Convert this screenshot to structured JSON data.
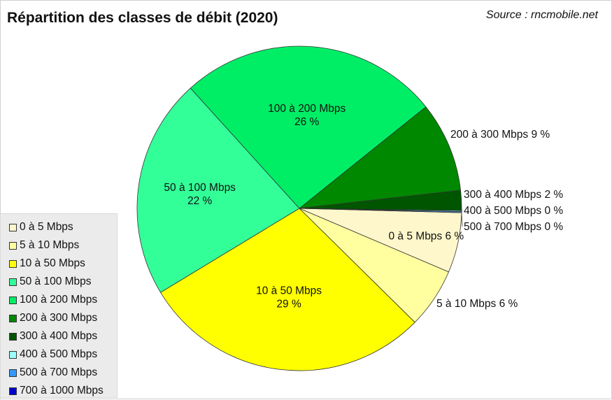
{
  "title": "Répartition des classes de débit (2020)",
  "source": "Source : rncmobile.net",
  "chart_data": {
    "type": "pie",
    "title": "Répartition des classes de débit (2020)",
    "legend_position": "bottom-left",
    "slices": [
      {
        "label": "0 à 5 Mbps",
        "value": 6,
        "color": "#fff7cc",
        "display": "0 à 5 Mbps 6 %",
        "label_pos": "inside"
      },
      {
        "label": "5 à 10 Mbps",
        "value": 6,
        "color": "#ffffa0",
        "display": "5 à 10 Mbps 6 %",
        "label_pos": "outside"
      },
      {
        "label": "10 à 50 Mbps",
        "value": 29,
        "color": "#ffff00",
        "display": "10 à 50 Mbps\n29 %",
        "label_pos": "inside"
      },
      {
        "label": "50 à 100 Mbps",
        "value": 22,
        "color": "#33ff99",
        "display": "50 à 100 Mbps\n22 %",
        "label_pos": "inside"
      },
      {
        "label": "100 à 200 Mbps",
        "value": 26,
        "color": "#00ee66",
        "display": "100 à 200 Mbps\n26 %",
        "label_pos": "inside"
      },
      {
        "label": "200 à 300 Mbps",
        "value": 9,
        "color": "#008800",
        "display": "200 à 300 Mbps 9 %",
        "label_pos": "outside"
      },
      {
        "label": "300 à 400 Mbps",
        "value": 2,
        "color": "#005500",
        "display": "300 à 400 Mbps 2 %",
        "label_pos": "outside"
      },
      {
        "label": "400 à 500 Mbps",
        "value": 0.1,
        "color": "#99ffff",
        "display": "400 à 500 Mbps 0 %",
        "label_pos": "outside"
      },
      {
        "label": "500 à 700 Mbps",
        "value": 0.1,
        "color": "#3399ff",
        "display": "500 à 700 Mbps 0 %",
        "label_pos": "outside"
      }
    ],
    "legend": [
      {
        "label": "0 à 5 Mbps",
        "color": "#fff7cc"
      },
      {
        "label": "5 à 10 Mbps",
        "color": "#ffffa0"
      },
      {
        "label": "10 à 50 Mbps",
        "color": "#ffff00"
      },
      {
        "label": "50 à 100 Mbps",
        "color": "#33ff99"
      },
      {
        "label": "100 à 200 Mbps",
        "color": "#00ee66"
      },
      {
        "label": "200 à 300 Mbps",
        "color": "#008800"
      },
      {
        "label": "300 à 400 Mbps",
        "color": "#005500"
      },
      {
        "label": "400 à 500 Mbps",
        "color": "#99ffff"
      },
      {
        "label": "500 à 700 Mbps",
        "color": "#3399ff"
      },
      {
        "label": "700 à 1000 Mbps",
        "color": "#0000cc"
      }
    ]
  }
}
